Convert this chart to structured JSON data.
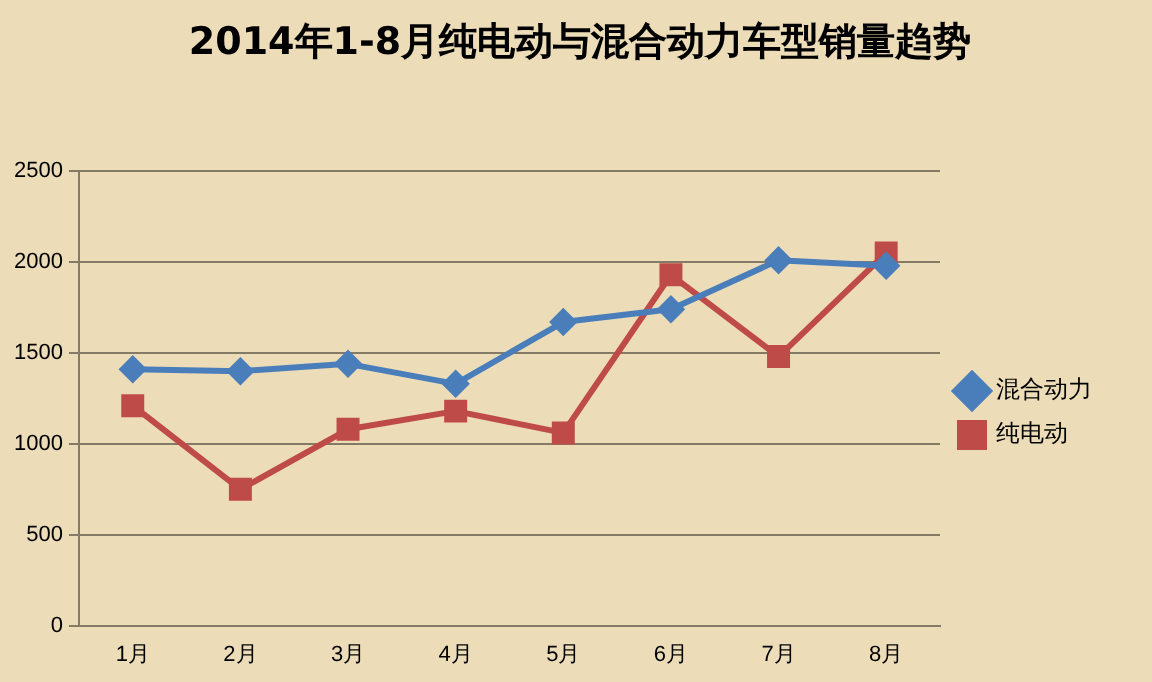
{
  "chart_data": {
    "type": "line",
    "title": "2014年1-8月纯电动与混合动力车型销量趋势",
    "categories": [
      "1月",
      "2月",
      "3月",
      "4月",
      "5月",
      "6月",
      "7月",
      "8月"
    ],
    "series": [
      {
        "name": "混合动力",
        "color": "#4a7ebb",
        "marker": "diamond",
        "values": [
          1410,
          1400,
          1440,
          1330,
          1670,
          1740,
          2010,
          1980
        ]
      },
      {
        "name": "纯电动",
        "color": "#be4b48",
        "marker": "square",
        "values": [
          1210,
          750,
          1080,
          1180,
          1060,
          1930,
          1480,
          2050
        ]
      }
    ],
    "ylim": [
      0,
      2500
    ],
    "yticks": [
      0,
      500,
      1000,
      1500,
      2000,
      2500
    ],
    "grid": "y",
    "legend": "right"
  }
}
